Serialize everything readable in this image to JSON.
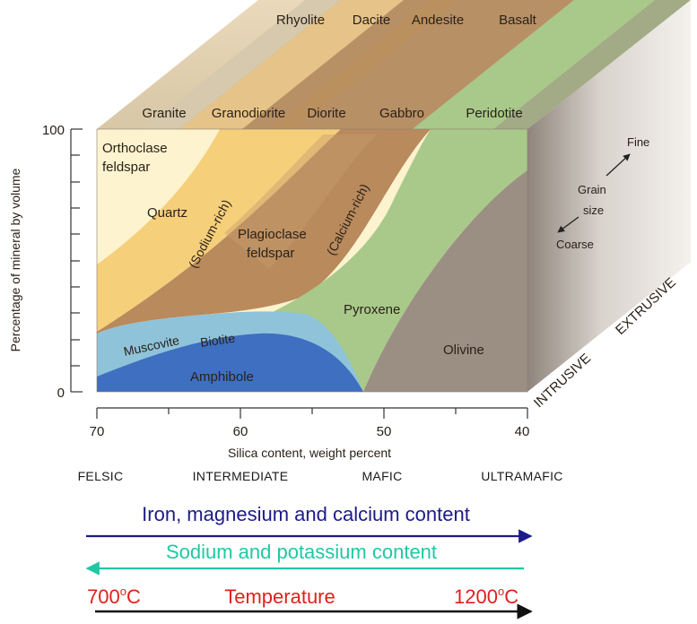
{
  "extrusive_rocks": [
    "Rhyolite",
    "Dacite",
    "Andesite",
    "Basalt"
  ],
  "intrusive_rocks": [
    "Granite",
    "Granodiorite",
    "Diorite",
    "Gabbro",
    "Peridotite"
  ],
  "y_axis": {
    "label": "Percentage of mineral by volume",
    "ticks": [
      "100",
      "0"
    ]
  },
  "x_axis": {
    "label": "Silica content, weight percent",
    "ticks": [
      "70",
      "60",
      "50",
      "40"
    ]
  },
  "minerals": {
    "orthoclase_line1": "Orthoclase",
    "orthoclase_line2": "feldspar",
    "quartz": "Quartz",
    "sodium_rich": "(Sodium-rich)",
    "calcium_rich": "(Calcium-rich)",
    "plagioclase_line1": "Plagioclase",
    "plagioclase_line2": "feldspar",
    "muscovite": "Muscovite",
    "biotite": "Biotite",
    "amphibole": "Amphibole",
    "pyroxene": "Pyroxene",
    "olivine": "Olivine"
  },
  "grain_size": {
    "fine": "Fine",
    "grain": "Grain",
    "size": "size",
    "coarse": "Coarse"
  },
  "side_labels": {
    "intrusive": "INTRUSIVE",
    "extrusive": "EXTRUSIVE"
  },
  "classifications": [
    "FELSIC",
    "INTERMEDIATE",
    "MAFIC",
    "ULTRAMAFIC"
  ],
  "trends": {
    "iron_magnesium_calcium": "Iron, magnesium and calcium content",
    "sodium_potassium": "Sodium and potassium content",
    "temp_low": "700",
    "temp_low_unit": "C",
    "temperature": "Temperature",
    "temp_high": "1200",
    "temp_high_unit": "C",
    "degree_mark": "o"
  },
  "colors": {
    "orthoclase": "#fdf3cf",
    "quartz": "#f6cf7b",
    "plagioclase": "#b98a5c",
    "muscovite": "#8fc3da",
    "amphibole": "#3f6fc0",
    "pyroxene": "#a9c98a",
    "olivine": "#9b8f83",
    "iron_arrow": "#1c1a8a",
    "sodium_arrow": "#1fc8a3",
    "temperature": "#e0201d"
  }
}
